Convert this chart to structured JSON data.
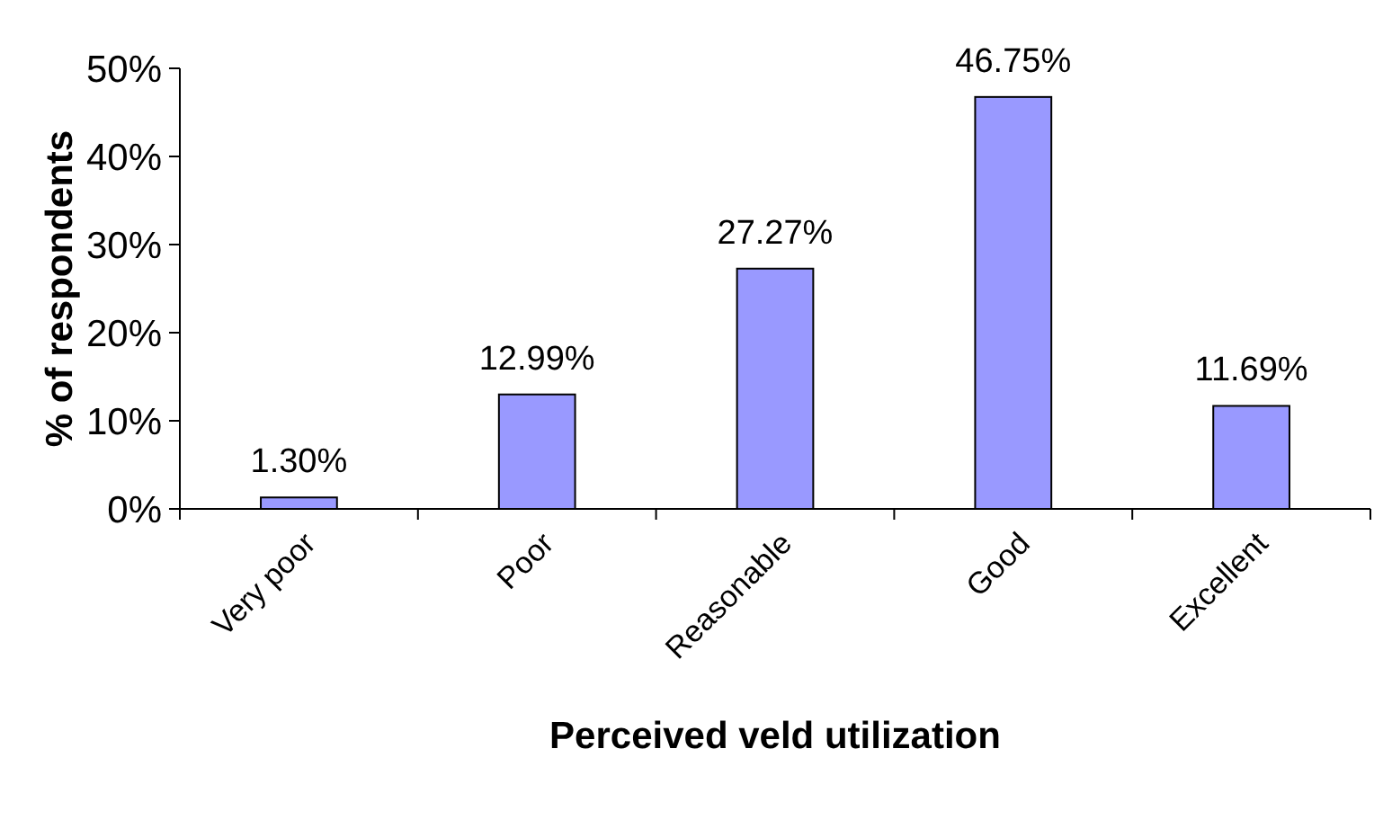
{
  "chart_data": {
    "type": "bar",
    "xlabel": "Perceived veld utilization",
    "ylabel": "% of respondents",
    "categories": [
      "Very poor",
      "Poor",
      "Reasonable",
      "Good",
      "Excellent"
    ],
    "values": [
      1.3,
      12.99,
      27.27,
      46.75,
      11.69
    ],
    "value_labels": [
      "1.30%",
      "12.99%",
      "27.27%",
      "46.75%",
      "11.69%"
    ],
    "color": "#9999ff",
    "ylim": [
      0,
      50
    ],
    "yticks": [
      {
        "value": 0,
        "label": "0%"
      },
      {
        "value": 10,
        "label": "10%"
      },
      {
        "value": 20,
        "label": "20%"
      },
      {
        "value": 30,
        "label": "30%"
      },
      {
        "value": 40,
        "label": "40%"
      },
      {
        "value": 50,
        "label": "50%"
      }
    ],
    "grid": false
  }
}
